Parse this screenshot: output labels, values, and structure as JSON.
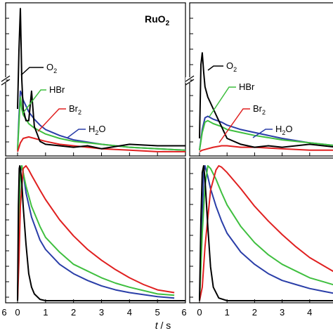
{
  "colors": {
    "O2": "#000000",
    "HBr": "#3fbf3f",
    "Br2": "#e02020",
    "H2O": "#2a3ea8",
    "axis": "#000000"
  },
  "chart_data": {
    "type": "line",
    "xlabel_italic": "t",
    "xlabel_unit": " / s",
    "xlim": [
      0,
      6
    ],
    "panels": [
      {
        "id": "left-top",
        "title_main": "RuO",
        "title_sub": "2",
        "labels": [
          {
            "main": "O",
            "sub": "2",
            "series": "O2"
          },
          {
            "main": "HBr",
            "sub": "",
            "series": "HBr"
          },
          {
            "main": "Br",
            "sub": "2",
            "series": "Br2"
          },
          {
            "main": "H",
            "sub": "2",
            "tail": "O",
            "series": "H2O"
          }
        ]
      },
      {
        "id": "right-top",
        "labels": [
          {
            "main": "O",
            "sub": "2",
            "series": "O2"
          },
          {
            "main": "HBr",
            "sub": "",
            "series": "HBr"
          },
          {
            "main": "Br",
            "sub": "2",
            "series": "Br2"
          },
          {
            "main": "H",
            "sub": "2",
            "tail": "O",
            "series": "H2O"
          }
        ]
      },
      {
        "id": "left-bottom"
      },
      {
        "id": "right-bottom"
      }
    ],
    "series": {
      "left-top": [
        {
          "key": "O2",
          "x": [
            0,
            0.05,
            0.1,
            0.15,
            0.2,
            0.3,
            0.4,
            0.5,
            0.6,
            0.8,
            1.0,
            1.5,
            2.0,
            2.5,
            3.0,
            4.0,
            5.0,
            6.0
          ],
          "y": [
            0.3,
            0.7,
            0.98,
            0.5,
            0.3,
            0.22,
            0.22,
            0.42,
            0.18,
            0.08,
            0.06,
            0.05,
            0.04,
            0.05,
            0.03,
            0.06,
            0.05,
            0.05
          ]
        },
        {
          "key": "HBr",
          "x": [
            0,
            0.05,
            0.1,
            0.15,
            0.2,
            0.3,
            0.4,
            0.6,
            0.8,
            1.0,
            1.5,
            2.0,
            3.0,
            4.0,
            5.0,
            6.0
          ],
          "y": [
            0.02,
            0.2,
            0.38,
            0.3,
            0.26,
            0.23,
            0.2,
            0.17,
            0.15,
            0.13,
            0.1,
            0.08,
            0.06,
            0.04,
            0.03,
            0.02
          ]
        },
        {
          "key": "Br2",
          "x": [
            0,
            0.05,
            0.1,
            0.2,
            0.4,
            0.6,
            1.0,
            1.5,
            2.0,
            3.0,
            4.0,
            5.0,
            6.0
          ],
          "y": [
            0.01,
            0.04,
            0.07,
            0.1,
            0.11,
            0.1,
            0.08,
            0.06,
            0.05,
            0.03,
            0.02,
            0.01,
            0.01
          ]
        },
        {
          "key": "H2O",
          "x": [
            0,
            0.05,
            0.1,
            0.15,
            0.2,
            0.3,
            0.4,
            0.6,
            0.8,
            1.0,
            1.5,
            2.0,
            3.0,
            4.0,
            5.0,
            6.0
          ],
          "y": [
            0.02,
            0.25,
            0.42,
            0.4,
            0.36,
            0.32,
            0.28,
            0.23,
            0.19,
            0.16,
            0.12,
            0.09,
            0.06,
            0.04,
            0.03,
            0.02
          ]
        }
      ],
      "right-top": [
        {
          "key": "O2",
          "x": [
            0,
            0.05,
            0.1,
            0.15,
            0.2,
            0.3,
            0.5,
            0.7,
            1.0,
            1.5,
            2.0,
            2.5,
            3.0,
            3.5,
            4.0,
            5.0,
            6.0
          ],
          "y": [
            0.1,
            0.6,
            0.68,
            0.55,
            0.45,
            0.38,
            0.3,
            0.22,
            0.1,
            0.06,
            0.04,
            0.05,
            0.04,
            0.05,
            0.06,
            0.04,
            0.03
          ]
        },
        {
          "key": "HBr",
          "x": [
            0,
            0.1,
            0.2,
            0.3,
            0.5,
            0.8,
            1.0,
            1.5,
            2.0,
            3.0,
            4.0,
            5.0,
            6.0
          ],
          "y": [
            0.02,
            0.14,
            0.21,
            0.22,
            0.2,
            0.18,
            0.16,
            0.14,
            0.12,
            0.09,
            0.07,
            0.05,
            0.04
          ]
        },
        {
          "key": "Br2",
          "x": [
            0,
            0.1,
            0.3,
            0.5,
            0.8,
            1.0,
            1.5,
            2.0,
            3.0,
            4.0,
            5.0,
            6.0
          ],
          "y": [
            0.01,
            0.02,
            0.03,
            0.04,
            0.05,
            0.05,
            0.04,
            0.04,
            0.03,
            0.02,
            0.02,
            0.01
          ]
        },
        {
          "key": "H2O",
          "x": [
            0,
            0.1,
            0.2,
            0.3,
            0.5,
            0.8,
            1.0,
            1.5,
            2.0,
            3.0,
            4.0,
            5.0,
            6.0
          ],
          "y": [
            0.02,
            0.16,
            0.24,
            0.25,
            0.23,
            0.21,
            0.19,
            0.16,
            0.14,
            0.1,
            0.07,
            0.05,
            0.04
          ]
        }
      ],
      "left-bottom": [
        {
          "key": "O2",
          "x": [
            0,
            0.03,
            0.06,
            0.08,
            0.1,
            0.15,
            0.2,
            0.3,
            0.4,
            0.5,
            0.6,
            0.8,
            1.0,
            2.0,
            6.0
          ],
          "y": [
            0.0,
            0.7,
            0.98,
            1.0,
            0.98,
            0.88,
            0.7,
            0.42,
            0.2,
            0.1,
            0.05,
            0.01,
            0.0,
            0.0,
            0.0
          ]
        },
        {
          "key": "HBr",
          "x": [
            0,
            0.05,
            0.1,
            0.15,
            0.2,
            0.3,
            0.5,
            0.8,
            1.0,
            1.5,
            2.0,
            2.5,
            3.0,
            3.5,
            4.0,
            5.0,
            5.6
          ],
          "y": [
            0.0,
            0.6,
            0.96,
            1.0,
            0.95,
            0.85,
            0.7,
            0.55,
            0.47,
            0.36,
            0.27,
            0.22,
            0.17,
            0.13,
            0.1,
            0.05,
            0.04
          ]
        },
        {
          "key": "Br2",
          "x": [
            0,
            0.05,
            0.1,
            0.2,
            0.3,
            0.4,
            0.5,
            0.8,
            1.0,
            1.5,
            2.0,
            2.5,
            3.0,
            3.5,
            4.0,
            4.5,
            5.0,
            5.6
          ],
          "y": [
            0.0,
            0.3,
            0.7,
            0.98,
            1.0,
            0.97,
            0.93,
            0.82,
            0.75,
            0.6,
            0.48,
            0.38,
            0.3,
            0.23,
            0.17,
            0.12,
            0.08,
            0.06
          ]
        },
        {
          "key": "H2O",
          "x": [
            0,
            0.05,
            0.1,
            0.15,
            0.2,
            0.3,
            0.5,
            0.8,
            1.0,
            1.5,
            2.0,
            2.5,
            3.0,
            3.5,
            4.0,
            5.0,
            5.6
          ],
          "y": [
            0.0,
            0.6,
            0.95,
            1.0,
            0.95,
            0.8,
            0.62,
            0.45,
            0.38,
            0.27,
            0.2,
            0.15,
            0.11,
            0.08,
            0.06,
            0.03,
            0.02
          ]
        }
      ],
      "right-bottom": [
        {
          "key": "O2",
          "x": [
            0,
            0.05,
            0.1,
            0.15,
            0.2,
            0.3,
            0.4,
            0.5,
            0.7,
            1.0,
            2.0,
            6.0
          ],
          "y": [
            0.0,
            0.6,
            0.95,
            1.0,
            0.9,
            0.55,
            0.25,
            0.1,
            0.02,
            0.0,
            0.0,
            0.0
          ]
        },
        {
          "key": "HBr",
          "x": [
            0,
            0.1,
            0.2,
            0.3,
            0.4,
            0.6,
            0.8,
            1.0,
            1.5,
            2.0,
            2.5,
            3.0,
            3.5,
            4.0,
            4.5,
            5.0
          ],
          "y": [
            0.0,
            0.5,
            0.85,
            1.0,
            0.98,
            0.9,
            0.8,
            0.71,
            0.55,
            0.43,
            0.34,
            0.27,
            0.22,
            0.17,
            0.14,
            0.11
          ]
        },
        {
          "key": "Br2",
          "x": [
            0,
            0.1,
            0.2,
            0.4,
            0.6,
            0.7,
            0.8,
            1.0,
            1.5,
            2.0,
            2.5,
            3.0,
            3.5,
            4.0,
            4.5,
            5.0
          ],
          "y": [
            0.0,
            0.1,
            0.4,
            0.82,
            0.97,
            1.0,
            0.99,
            0.95,
            0.83,
            0.7,
            0.59,
            0.49,
            0.4,
            0.32,
            0.26,
            0.2
          ]
        },
        {
          "key": "H2O",
          "x": [
            0,
            0.1,
            0.15,
            0.2,
            0.3,
            0.4,
            0.6,
            0.8,
            1.0,
            1.5,
            2.0,
            2.5,
            3.0,
            3.5,
            4.0,
            4.5,
            5.0
          ],
          "y": [
            0.0,
            0.6,
            0.95,
            1.0,
            0.92,
            0.83,
            0.7,
            0.59,
            0.5,
            0.36,
            0.27,
            0.2,
            0.15,
            0.12,
            0.09,
            0.07,
            0.05
          ]
        }
      ]
    },
    "xticks_left": [
      "6",
      "0",
      "1",
      "2",
      "3",
      "4",
      "5",
      "6"
    ],
    "xticks_right": [
      "0",
      "1",
      "2",
      "3",
      "4"
    ]
  }
}
